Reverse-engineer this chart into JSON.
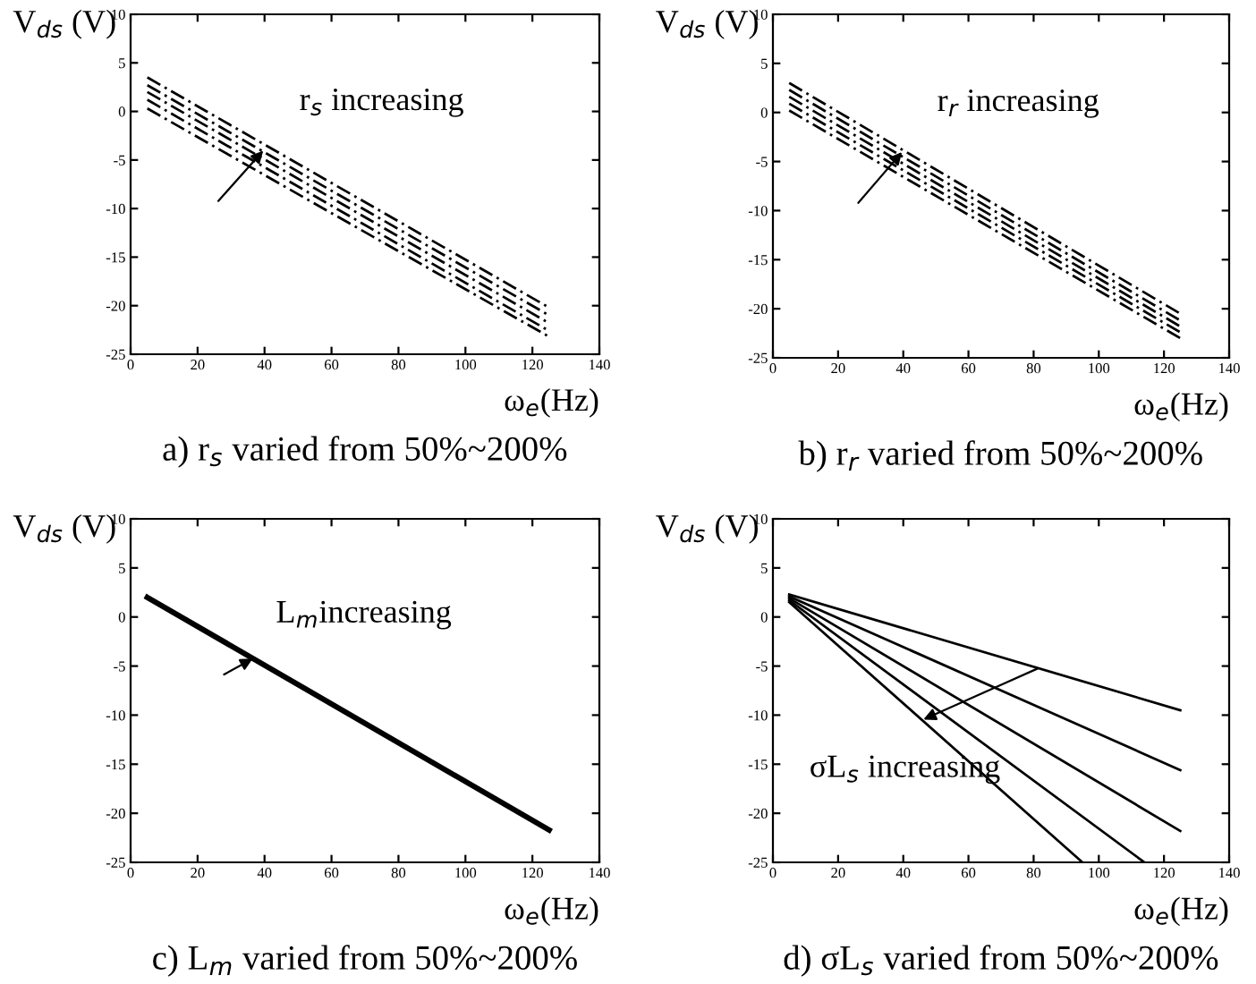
{
  "chart_data": [
    {
      "type": "line",
      "title": "a) r$_{s}$ varied from 50%~200%",
      "xlabel": "ω$_{e}$(Hz)",
      "ylabel": "V$_{ds}$ (V)",
      "line_style": "dashed",
      "xlim": [
        0,
        140
      ],
      "ylim": [
        -25,
        10
      ],
      "xticks": [
        0,
        20,
        40,
        60,
        80,
        100,
        120,
        140
      ],
      "yticks": [
        -25,
        -20,
        -15,
        -10,
        -5,
        0,
        5,
        10
      ],
      "grid": false,
      "legend": false,
      "series": [
        {
          "color": "#000000",
          "x": [
            5,
            125
          ],
          "values": [
            3.5,
            -20.2
          ]
        },
        {
          "color": "#000000",
          "x": [
            5,
            125
          ],
          "values": [
            2.7,
            -21.0
          ]
        },
        {
          "color": "#000000",
          "x": [
            5,
            125
          ],
          "values": [
            2.0,
            -21.8
          ]
        },
        {
          "color": "#000000",
          "x": [
            5,
            125
          ],
          "values": [
            1.2,
            -22.6
          ]
        },
        {
          "color": "#000000",
          "x": [
            5,
            125
          ],
          "values": [
            0.3,
            -23.2
          ]
        }
      ],
      "annotations": [
        "r$_{s}$ increasing"
      ]
    },
    {
      "type": "line",
      "title": "b) r$_{r}$ varied from 50%~200%",
      "xlabel": "ω$_{e}$(Hz)",
      "ylabel": "V$_{ds}$ (V)",
      "line_style": "dashed",
      "xlim": [
        0,
        140
      ],
      "ylim": [
        -25,
        10
      ],
      "xticks": [
        0,
        20,
        40,
        60,
        80,
        100,
        120,
        140
      ],
      "yticks": [
        -25,
        -20,
        -15,
        -10,
        -5,
        0,
        5,
        10
      ],
      "grid": false,
      "legend": false,
      "series": [
        {
          "color": "#000000",
          "x": [
            5,
            125
          ],
          "values": [
            3.0,
            -20.5
          ]
        },
        {
          "color": "#000000",
          "x": [
            5,
            125
          ],
          "values": [
            2.3,
            -21.2
          ]
        },
        {
          "color": "#000000",
          "x": [
            5,
            125
          ],
          "values": [
            1.6,
            -21.8
          ]
        },
        {
          "color": "#000000",
          "x": [
            5,
            125
          ],
          "values": [
            0.9,
            -22.4
          ]
        },
        {
          "color": "#000000",
          "x": [
            5,
            125
          ],
          "values": [
            0.2,
            -23.0
          ]
        }
      ],
      "annotations": [
        "r$_{r}$ increasing"
      ]
    },
    {
      "type": "line",
      "title": "c) L$_{m}$ varied from 50%~200%",
      "xlabel": "ω$_{e}$(Hz)",
      "ylabel": "V$_{ds}$ (V)",
      "line_style": "solid",
      "xlim": [
        0,
        140
      ],
      "ylim": [
        -25,
        10
      ],
      "xticks": [
        0,
        20,
        40,
        60,
        80,
        100,
        120,
        140
      ],
      "yticks": [
        -25,
        -20,
        -15,
        -10,
        -5,
        0,
        5,
        10
      ],
      "grid": false,
      "legend": false,
      "series": [
        {
          "color": "#000000",
          "x": [
            5,
            125
          ],
          "values": [
            2.0,
            -21.7
          ]
        }
      ],
      "annotations": [
        "L$_{m}$increasing"
      ]
    },
    {
      "type": "line",
      "title": "d) σL$_{s}$ varied from 50%~200%",
      "xlabel": "ω$_{e}$(Hz)",
      "ylabel": "V$_{ds}$ (V)",
      "line_style": "solid",
      "xlim": [
        0,
        140
      ],
      "ylim": [
        -25,
        10
      ],
      "xticks": [
        0,
        20,
        40,
        60,
        80,
        100,
        120,
        140
      ],
      "yticks": [
        -25,
        -20,
        -15,
        -10,
        -5,
        0,
        5,
        10
      ],
      "grid": false,
      "legend": false,
      "series": [
        {
          "color": "#000000",
          "x": [
            5,
            125
          ],
          "values": [
            2.3,
            -9.5
          ]
        },
        {
          "color": "#000000",
          "x": [
            5,
            125
          ],
          "values": [
            2.1,
            -15.6
          ]
        },
        {
          "color": "#000000",
          "x": [
            5,
            125
          ],
          "values": [
            1.9,
            -21.8
          ]
        },
        {
          "color": "#000000",
          "x": [
            5,
            114
          ],
          "values": [
            1.7,
            -25
          ]
        },
        {
          "color": "#000000",
          "x": [
            5,
            95
          ],
          "values": [
            1.5,
            -25
          ]
        }
      ],
      "annotations": [
        "σL$_{s}$ increasing"
      ]
    }
  ]
}
